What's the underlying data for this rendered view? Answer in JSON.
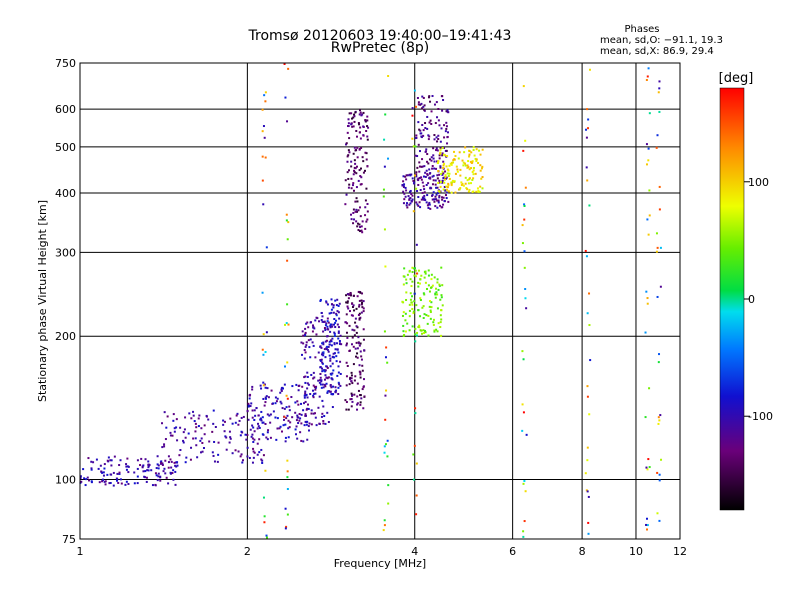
{
  "chart_data": {
    "type": "scatter",
    "title": "Tromsø 20120603 19:40:00–19:41:43",
    "subtitle": "RwPretec (8p)",
    "xlabel": "Frequency [MHz]",
    "ylabel": "Stationary phase Virtual Height [km]",
    "x_scale": "log",
    "y_scale": "log",
    "xlim": [
      1,
      12
    ],
    "ylim": [
      75,
      750
    ],
    "x_ticks": [
      1,
      2,
      4,
      6,
      8,
      10,
      12
    ],
    "y_ticks": [
      75,
      100,
      200,
      300,
      400,
      500,
      600,
      750
    ],
    "grid": true,
    "colorbar": {
      "label": "[deg]",
      "range": [
        -180,
        180
      ],
      "ticks": [
        -100,
        0,
        100
      ]
    },
    "phases_box": {
      "heading": "Phases",
      "line1": "mean, sd,O: −91.1, 19.3",
      "line2": "mean, sd,X: 86.9, 29.4"
    },
    "clusters": [
      {
        "x": [
          1.0,
          1.5
        ],
        "y": [
          97,
          112
        ],
        "phase": -105
      },
      {
        "x": [
          1.4,
          2.2
        ],
        "y": [
          108,
          140
        ],
        "phase": -110
      },
      {
        "x": [
          2.0,
          2.6
        ],
        "y": [
          120,
          160
        ],
        "phase": -105
      },
      {
        "x": [
          2.5,
          2.85
        ],
        "y": [
          130,
          220
        ],
        "phase": -110
      },
      {
        "x": [
          2.7,
          2.95
        ],
        "y": [
          150,
          240
        ],
        "phase": -95
      },
      {
        "x": [
          3.0,
          3.25
        ],
        "y": [
          140,
          250
        ],
        "phase": -140
      },
      {
        "x": [
          3.0,
          3.3
        ],
        "y": [
          330,
          600
        ],
        "phase": -135
      },
      {
        "x": [
          3.8,
          4.6
        ],
        "y": [
          370,
          440
        ],
        "phase": -115
      },
      {
        "x": [
          4.0,
          4.6
        ],
        "y": [
          420,
          640
        ],
        "phase": -125
      },
      {
        "x": [
          4.4,
          5.3
        ],
        "y": [
          400,
          500
        ],
        "phase": 90
      },
      {
        "x": [
          3.8,
          4.5
        ],
        "y": [
          200,
          280
        ],
        "phase": 50
      }
    ],
    "sparse_columns": [
      2.15,
      2.35,
      3.55,
      4.0,
      6.3,
      8.2,
      10.5,
      11.0
    ]
  }
}
